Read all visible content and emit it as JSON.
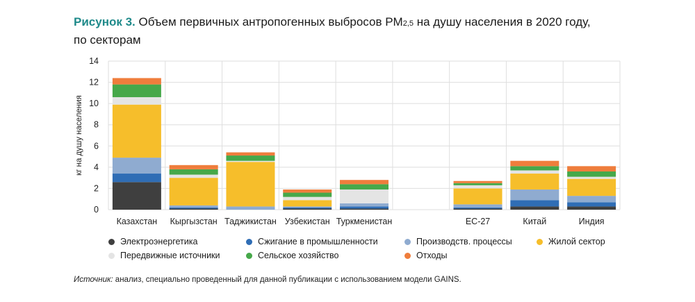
{
  "title": {
    "lead": "Рисунок 3.",
    "text_before_sub": " Объем первичных антропогенных выбросов PM",
    "sub": "2,5",
    "text_after_sub": " на душу населения в 2020 году,",
    "line2": "по секторам"
  },
  "source": {
    "label": "Источник:",
    "text": " анализ, специально проведенный для данной публикации с использованием модели GAINS."
  },
  "chart_data": {
    "type": "bar",
    "stacked": true,
    "ylabel": "кг на душу населения",
    "ylim": [
      0,
      14
    ],
    "yticks": [
      0,
      2,
      4,
      6,
      8,
      10,
      12,
      14
    ],
    "grid": true,
    "categories": [
      "Казахстан",
      "Кыргызстан",
      "Таджикистан",
      "Узбекистан",
      "Туркменистан",
      "",
      "ЕС-27",
      "Китай",
      "Индия"
    ],
    "series": [
      {
        "name": "Электроэнергетика",
        "color": "#3f3f3f",
        "values": [
          2.6,
          0.1,
          0.0,
          0.1,
          0.1,
          0,
          0.1,
          0.3,
          0.3
        ]
      },
      {
        "name": "Сжигание в промышленности",
        "color": "#2f6db5",
        "values": [
          0.8,
          0.1,
          0.0,
          0.1,
          0.2,
          0,
          0.1,
          0.6,
          0.4
        ]
      },
      {
        "name": "Производств. процессы",
        "color": "#8fabd0",
        "values": [
          1.5,
          0.2,
          0.3,
          0.1,
          0.3,
          0,
          0.3,
          1.0,
          0.6
        ]
      },
      {
        "name": "Жилой сектор",
        "color": "#f6be2b",
        "values": [
          5.0,
          2.6,
          4.2,
          0.6,
          0.0,
          0,
          1.5,
          1.5,
          1.6
        ]
      },
      {
        "name": "Передвижные источники",
        "color": "#e4e4e4",
        "values": [
          0.7,
          0.3,
          0.1,
          0.3,
          1.3,
          0,
          0.3,
          0.3,
          0.2
        ]
      },
      {
        "name": "Сельское хозяйство",
        "color": "#46a84a",
        "values": [
          1.2,
          0.5,
          0.5,
          0.4,
          0.5,
          0,
          0.2,
          0.4,
          0.5
        ]
      },
      {
        "name": "Отходы",
        "color": "#ef7d3c",
        "values": [
          0.6,
          0.4,
          0.3,
          0.3,
          0.4,
          0,
          0.2,
          0.5,
          0.5
        ]
      }
    ]
  }
}
